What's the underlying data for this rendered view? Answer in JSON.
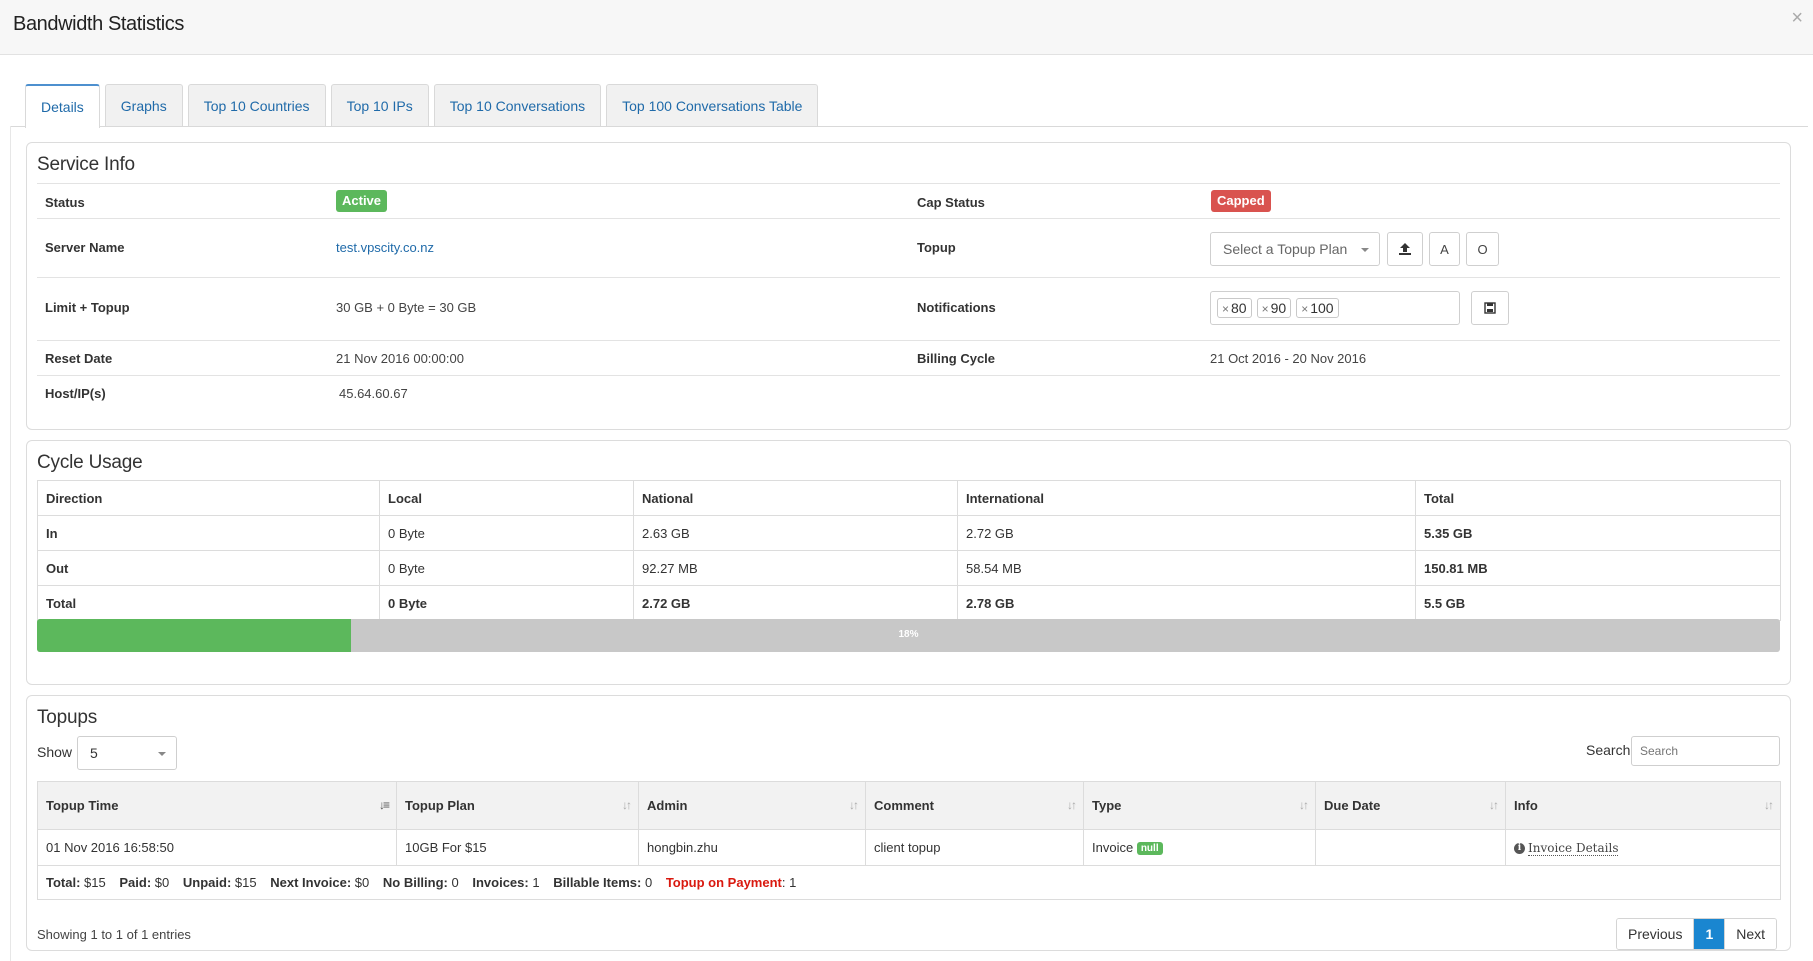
{
  "modal": {
    "title": "Bandwidth Statistics",
    "close": "×"
  },
  "tabs": [
    {
      "label": "Details",
      "active": true
    },
    {
      "label": "Graphs",
      "active": false
    },
    {
      "label": "Top 10 Countries",
      "active": false
    },
    {
      "label": "Top 10 IPs",
      "active": false
    },
    {
      "label": "Top 10 Conversations",
      "active": false
    },
    {
      "label": "Top 100 Conversations Table",
      "active": false
    }
  ],
  "service_info": {
    "title": "Service Info",
    "status_label": "Status",
    "status_value": "Active",
    "cap_status_label": "Cap Status",
    "cap_status_value": "Capped",
    "server_name_label": "Server Name",
    "server_name_value": "test.vpscity.co.nz",
    "topup_label": "Topup",
    "topup_placeholder": "Select a Topup Plan",
    "topup_btn_a": "A",
    "topup_btn_o": "O",
    "limit_label": "Limit + Topup",
    "limit_value": "30 GB + 0 Byte = 30 GB",
    "notifications_label": "Notifications",
    "notifications": [
      "80",
      "90",
      "100"
    ],
    "reset_date_label": "Reset Date",
    "reset_date_value": "21 Nov 2016 00:00:00",
    "billing_cycle_label": "Billing Cycle",
    "billing_cycle_value": "21 Oct 2016 - 20 Nov 2016",
    "host_label": "Host/IP(s)",
    "host_value": "45.64.60.67",
    "colors": {
      "active": "#5cb85c",
      "capped": "#d9534f"
    }
  },
  "cycle_usage": {
    "title": "Cycle Usage",
    "columns": [
      "Direction",
      "Local",
      "National",
      "International",
      "Total"
    ],
    "rows": [
      [
        "In",
        "0 Byte",
        "2.63 GB",
        "2.72 GB",
        "5.35 GB"
      ],
      [
        "Out",
        "0 Byte",
        "92.27 MB",
        "58.54 MB",
        "150.81 MB"
      ],
      [
        "Total",
        "0 Byte",
        "2.72 GB",
        "2.78 GB",
        "5.5 GB"
      ]
    ],
    "progress_fraction": 0.18,
    "progress_label": "18%"
  },
  "topups": {
    "title": "Topups",
    "show_label": "Show",
    "show_value": "5",
    "search_label": "Search:",
    "search_placeholder": "Search",
    "columns": [
      "Topup Time",
      "Topup Plan",
      "Admin",
      "Comment",
      "Type",
      "Due Date",
      "Info"
    ],
    "row": {
      "time": "01 Nov 2016 16:58:50",
      "plan": "10GB For $15",
      "admin": "hongbin.zhu",
      "comment": "client topup",
      "type": "Invoice",
      "type_badge": "null",
      "due_date": "",
      "info_link": "Invoice Details"
    },
    "summary": {
      "total_label": "Total:",
      "total": "$15",
      "paid_label": "Paid:",
      "paid": "$0",
      "unpaid_label": "Unpaid:",
      "unpaid": "$15",
      "next_invoice_label": "Next Invoice:",
      "next_invoice": "$0",
      "no_billing_label": "No Billing:",
      "no_billing": "0",
      "invoices_label": "Invoices:",
      "invoices": "1",
      "billable_label": "Billable Items:",
      "billable": "0",
      "topup_payment_label": "Topup on Payment",
      "topup_payment": ": 1"
    },
    "showing": "Showing 1 to 1 of 1 entries",
    "pager": {
      "previous": "Previous",
      "current": "1",
      "next": "Next"
    }
  }
}
